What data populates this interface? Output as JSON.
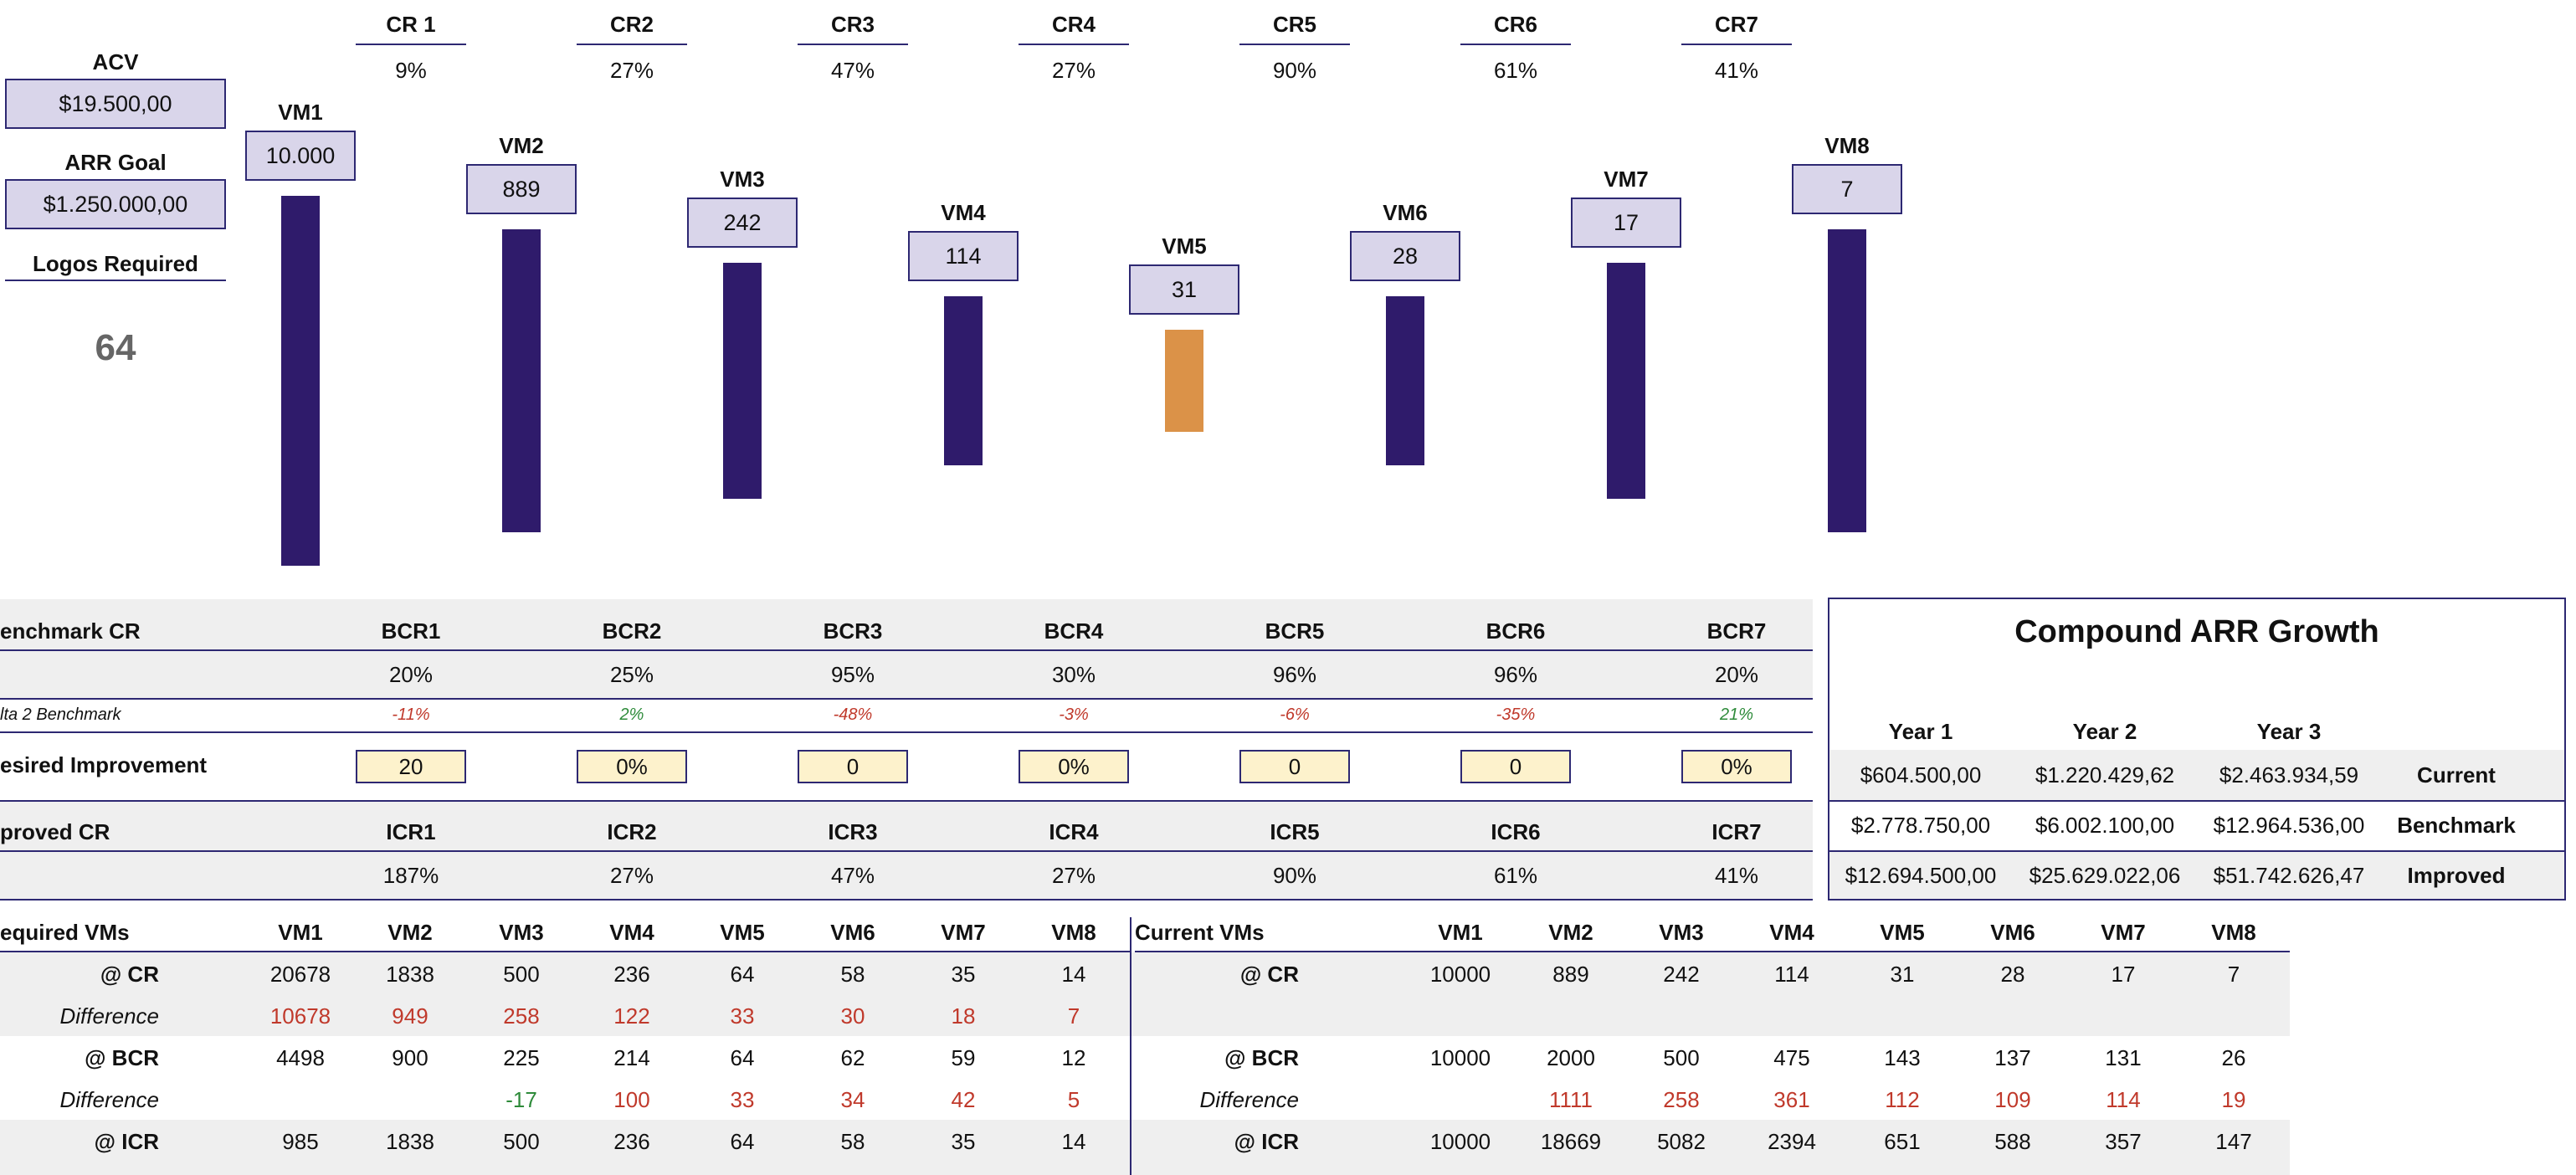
{
  "inputs": {
    "acv_label": "ACV",
    "acv_value": "$19.500,00",
    "arr_goal_label": "ARR Goal",
    "arr_goal_value": "$1.250.000,00",
    "logos_label": "Logos Required",
    "logos_value": "64"
  },
  "conversion_rates": [
    {
      "label": "CR 1",
      "value": "9%"
    },
    {
      "label": "CR2",
      "value": "27%"
    },
    {
      "label": "CR3",
      "value": "47%"
    },
    {
      "label": "CR4",
      "value": "27%"
    },
    {
      "label": "CR5",
      "value": "90%"
    },
    {
      "label": "CR6",
      "value": "61%"
    },
    {
      "label": "CR7",
      "value": "41%"
    }
  ],
  "volume_metrics": [
    {
      "label": "VM1",
      "value": "10.000"
    },
    {
      "label": "VM2",
      "value": "889"
    },
    {
      "label": "VM3",
      "value": "242"
    },
    {
      "label": "VM4",
      "value": "114"
    },
    {
      "label": "VM5",
      "value": "31"
    },
    {
      "label": "VM6",
      "value": "28"
    },
    {
      "label": "VM7",
      "value": "17"
    },
    {
      "label": "VM8",
      "value": "7"
    }
  ],
  "colors": {
    "bar": "#2f1b6b",
    "bar_highlight": "#db9248",
    "accent": "#2d2872",
    "input_fill": "#d9d5ea",
    "improve_fill": "#fdf2cc"
  },
  "benchmark": {
    "row_label": "enchmark CR",
    "labels": [
      "BCR1",
      "BCR2",
      "BCR3",
      "BCR4",
      "BCR5",
      "BCR6",
      "BCR7"
    ],
    "values": [
      "20%",
      "25%",
      "95%",
      "30%",
      "96%",
      "96%",
      "20%"
    ],
    "delta_label": "lta 2 Benchmark",
    "deltas": [
      "-11%",
      "2%",
      "-48%",
      "-3%",
      "-6%",
      "-35%",
      "21%"
    ]
  },
  "improvement": {
    "row_label": "esired Improvement",
    "values": [
      "20",
      "0%",
      "0",
      "0%",
      "0",
      "0",
      "0%"
    ]
  },
  "improved": {
    "row_label": "proved CR",
    "labels": [
      "ICR1",
      "ICR2",
      "ICR3",
      "ICR4",
      "ICR5",
      "ICR6",
      "ICR7"
    ],
    "values": [
      "187%",
      "27%",
      "47%",
      "27%",
      "90%",
      "61%",
      "41%"
    ]
  },
  "compound": {
    "title": "Compound ARR Growth",
    "years": [
      "Year 1",
      "Year 2",
      "Year 3"
    ],
    "rows": [
      {
        "label": "Current",
        "values": [
          "$604.500,00",
          "$1.220.429,62",
          "$2.463.934,59"
        ]
      },
      {
        "label": "Benchmark",
        "values": [
          "$2.778.750,00",
          "$6.002.100,00",
          "$12.964.536,00"
        ]
      },
      {
        "label": "Improved",
        "values": [
          "$12.694.500,00",
          "$25.629.022,06",
          "$51.742.626,47"
        ]
      }
    ]
  },
  "required_vms": {
    "title": "equired VMs",
    "headers": [
      "VM1",
      "VM2",
      "VM3",
      "VM4",
      "VM5",
      "VM6",
      "VM7",
      "VM8"
    ],
    "rows": [
      {
        "label": "@ CR",
        "bold": true,
        "values": [
          "20678",
          "1838",
          "500",
          "236",
          "64",
          "58",
          "35",
          "14"
        ]
      },
      {
        "label": "Difference",
        "bold": false,
        "values": [
          "10678",
          "949",
          "258",
          "122",
          "33",
          "30",
          "18",
          "7"
        ]
      },
      {
        "label": "@ BCR",
        "bold": true,
        "values": [
          "4498",
          "900",
          "225",
          "214",
          "64",
          "62",
          "59",
          "12"
        ]
      },
      {
        "label": "Difference",
        "bold": false,
        "values": [
          "",
          "",
          "-17",
          "100",
          "33",
          "34",
          "42",
          "5"
        ]
      },
      {
        "label": "@ ICR",
        "bold": true,
        "values": [
          "985",
          "1838",
          "500",
          "236",
          "64",
          "58",
          "35",
          "14"
        ]
      }
    ]
  },
  "current_vms": {
    "title": "Current VMs",
    "headers": [
      "VM1",
      "VM2",
      "VM3",
      "VM4",
      "VM5",
      "VM6",
      "VM7",
      "VM8"
    ],
    "rows": [
      {
        "label": "@ CR",
        "bold": true,
        "values": [
          "10000",
          "889",
          "242",
          "114",
          "31",
          "28",
          "17",
          "7"
        ]
      },
      {
        "label": "",
        "bold": false,
        "values": [
          "",
          "",
          "",
          "",
          "",
          "",
          "",
          ""
        ]
      },
      {
        "label": "@ BCR",
        "bold": true,
        "values": [
          "10000",
          "2000",
          "500",
          "475",
          "143",
          "137",
          "131",
          "26"
        ]
      },
      {
        "label": "Difference",
        "bold": false,
        "values": [
          "",
          "1111",
          "258",
          "361",
          "112",
          "109",
          "114",
          "19"
        ]
      },
      {
        "label": "@ ICR",
        "bold": true,
        "values": [
          "10000",
          "18669",
          "5082",
          "2394",
          "651",
          "588",
          "357",
          "147"
        ]
      }
    ]
  }
}
